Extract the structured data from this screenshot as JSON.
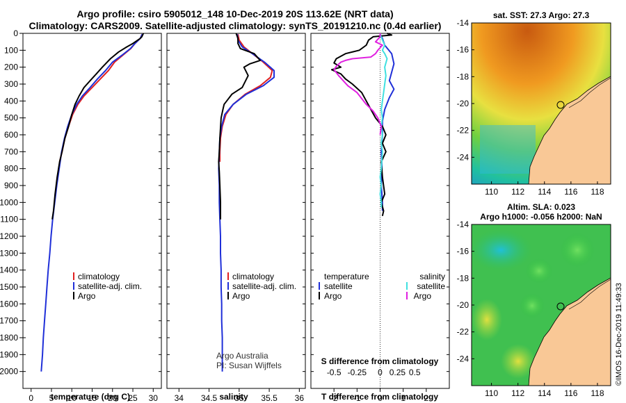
{
  "header": {
    "title_line1": "Argo profile: csiro 5905012_148 10-Dec-2019 20S 113.62E (NRT data)",
    "title_line2": "Climatology: CARS2009. Satellite-adjusted climatology: synTS_20191210.nc (0.4d earlier)"
  },
  "colors": {
    "climatology": "#e02020",
    "satellite": "#1f2fd8",
    "argo": "#000000",
    "sal_satellite": "#40e0e0",
    "sal_argo": "#e020e0",
    "land": "#f9c896"
  },
  "chart_data": [
    {
      "type": "line",
      "name": "temperature-profile",
      "xlabel": "temperature (deg C)",
      "ylabel": "",
      "xlim": [
        -2,
        32
      ],
      "ylim": [
        2100,
        0
      ],
      "xticks": [
        0,
        5,
        10,
        15,
        20,
        25,
        30
      ],
      "yticks": [
        0,
        100,
        200,
        300,
        400,
        500,
        600,
        700,
        800,
        900,
        1000,
        1100,
        1200,
        1300,
        1400,
        1500,
        1600,
        1700,
        1800,
        1900,
        2000
      ],
      "legend": [
        "climatology",
        "satellite-adj. clim.",
        "Argo"
      ],
      "series": [
        {
          "name": "climatology",
          "points": [
            [
              27.3,
              5
            ],
            [
              26.8,
              30
            ],
            [
              25.5,
              60
            ],
            [
              24.5,
              90
            ],
            [
              22.5,
              130
            ],
            [
              20.5,
              170
            ],
            [
              19,
              220
            ],
            [
              17,
              270
            ],
            [
              15,
              320
            ],
            [
              13,
              370
            ],
            [
              11.5,
              420
            ],
            [
              10.2,
              480
            ],
            [
              9.2,
              550
            ],
            [
              8.3,
              620
            ],
            [
              7.6,
              700
            ],
            [
              7,
              760
            ]
          ]
        },
        {
          "name": "satellite-adj. clim.",
          "points": [
            [
              27.3,
              5
            ],
            [
              26.8,
              30
            ],
            [
              25.5,
              60
            ],
            [
              24.4,
              90
            ],
            [
              22.3,
              130
            ],
            [
              20,
              170
            ],
            [
              18.3,
              220
            ],
            [
              16.3,
              270
            ],
            [
              14.5,
              320
            ],
            [
              12.6,
              370
            ],
            [
              11.2,
              420
            ],
            [
              10,
              480
            ],
            [
              9,
              550
            ],
            [
              8.2,
              620
            ],
            [
              7.5,
              700
            ],
            [
              6.9,
              800
            ],
            [
              6.3,
              900
            ],
            [
              5.8,
              1000
            ],
            [
              5.3,
              1100
            ],
            [
              4.9,
              1200
            ],
            [
              4.6,
              1300
            ],
            [
              4.2,
              1400
            ],
            [
              3.9,
              1500
            ],
            [
              3.6,
              1600
            ],
            [
              3.3,
              1700
            ],
            [
              3.0,
              1800
            ],
            [
              2.8,
              1900
            ],
            [
              2.5,
              2000
            ]
          ]
        },
        {
          "name": "Argo",
          "points": [
            [
              27.6,
              0
            ],
            [
              27.2,
              20
            ],
            [
              26.8,
              30
            ],
            [
              25,
              60
            ],
            [
              23.5,
              80
            ],
            [
              21.5,
              110
            ],
            [
              19.5,
              150
            ],
            [
              17.5,
              200
            ],
            [
              16,
              240
            ],
            [
              14.5,
              280
            ],
            [
              13,
              320
            ],
            [
              11.8,
              370
            ],
            [
              10.8,
              420
            ],
            [
              10,
              480
            ],
            [
              9.2,
              550
            ],
            [
              8.3,
              620
            ],
            [
              7.6,
              700
            ],
            [
              7,
              760
            ],
            [
              6.4,
              850
            ],
            [
              5.9,
              950
            ],
            [
              5.5,
              1050
            ],
            [
              5.2,
              1100
            ]
          ]
        }
      ]
    },
    {
      "type": "line",
      "name": "salinity-profile",
      "xlabel": "salinity",
      "xlim": [
        33.8,
        36.1
      ],
      "ylim": [
        2100,
        0
      ],
      "xticks": [
        34,
        34.5,
        35,
        35.5,
        36
      ],
      "xticklabels": [
        "34",
        "34.5",
        "35",
        "35.5",
        "36"
      ],
      "legend": [
        "climatology",
        "satellite-adj. clim.",
        "Argo"
      ],
      "annotation": [
        "Argo Australia",
        "PI: Susan Wijffels"
      ],
      "series": [
        {
          "name": "climatology",
          "points": [
            [
              34.98,
              5
            ],
            [
              35.0,
              40
            ],
            [
              35.08,
              80
            ],
            [
              35.22,
              120
            ],
            [
              35.4,
              170
            ],
            [
              35.55,
              220
            ],
            [
              35.52,
              260
            ],
            [
              35.35,
              310
            ],
            [
              35.1,
              360
            ],
            [
              34.9,
              420
            ],
            [
              34.78,
              480
            ],
            [
              34.72,
              550
            ],
            [
              34.69,
              620
            ],
            [
              34.68,
              700
            ],
            [
              34.68,
              760
            ]
          ]
        },
        {
          "name": "satellite-adj. clim.",
          "points": [
            [
              34.97,
              5
            ],
            [
              34.98,
              40
            ],
            [
              35.05,
              80
            ],
            [
              35.22,
              120
            ],
            [
              35.42,
              170
            ],
            [
              35.58,
              220
            ],
            [
              35.58,
              260
            ],
            [
              35.4,
              310
            ],
            [
              35.12,
              360
            ],
            [
              34.9,
              420
            ],
            [
              34.76,
              480
            ],
            [
              34.71,
              550
            ],
            [
              34.68,
              620
            ],
            [
              34.67,
              700
            ],
            [
              34.66,
              800
            ],
            [
              34.67,
              900
            ],
            [
              34.67,
              1000
            ],
            [
              34.68,
              1100
            ],
            [
              34.69,
              1200
            ],
            [
              34.69,
              1300
            ],
            [
              34.7,
              1400
            ],
            [
              34.7,
              1500
            ],
            [
              34.71,
              1600
            ],
            [
              34.71,
              1700
            ],
            [
              34.72,
              1800
            ],
            [
              34.72,
              1900
            ],
            [
              34.72,
              2000
            ]
          ]
        },
        {
          "name": "Argo",
          "points": [
            [
              34.95,
              0
            ],
            [
              34.98,
              30
            ],
            [
              34.98,
              60
            ],
            [
              35.02,
              90
            ],
            [
              35.25,
              120
            ],
            [
              35.35,
              160
            ],
            [
              35.18,
              180
            ],
            [
              35.08,
              200
            ],
            [
              35.15,
              250
            ],
            [
              35.05,
              320
            ],
            [
              34.88,
              360
            ],
            [
              34.75,
              420
            ],
            [
              34.73,
              450
            ],
            [
              34.7,
              500
            ],
            [
              34.69,
              560
            ],
            [
              34.68,
              620
            ],
            [
              34.67,
              700
            ],
            [
              34.66,
              760
            ],
            [
              34.67,
              820
            ],
            [
              34.68,
              900
            ],
            [
              34.69,
              1000
            ],
            [
              34.69,
              1100
            ]
          ]
        }
      ]
    },
    {
      "type": "line",
      "name": "difference-profile",
      "xlabel": "T difference from climatology",
      "xlabel_top": "S difference from climatology",
      "xlim": [
        -3,
        3
      ],
      "ylim": [
        2100,
        0
      ],
      "xticks": [
        -2,
        -1,
        0,
        1,
        2
      ],
      "xticklabels": [
        "-2",
        "-1",
        "0",
        "1",
        "2"
      ],
      "sticks": [
        -2,
        -1,
        0,
        0.75,
        1.5
      ],
      "sticklabels": [
        "-0.5",
        "-0.25",
        "0",
        "0.25",
        "0.5"
      ],
      "legend_left": [
        "temperature",
        "satellite",
        "Argo"
      ],
      "legend_right": [
        "salinity",
        "satellite",
        "Argo"
      ],
      "series": [
        {
          "name": "T satellite",
          "points": [
            [
              0,
              5
            ],
            [
              0.1,
              30
            ],
            [
              0.2,
              70
            ],
            [
              0.5,
              120
            ],
            [
              0.6,
              180
            ],
            [
              0.5,
              230
            ],
            [
              0.4,
              280
            ],
            [
              0.6,
              330
            ],
            [
              0.4,
              380
            ],
            [
              0.2,
              450
            ],
            [
              0.1,
              520
            ],
            [
              0.1,
              600
            ],
            [
              0.05,
              700
            ],
            [
              0.08,
              800
            ],
            [
              0.05,
              900
            ],
            [
              0.1,
              1000
            ],
            [
              0.1,
              1050
            ]
          ]
        },
        {
          "name": "T Argo",
          "points": [
            [
              0.3,
              0
            ],
            [
              0.4,
              5
            ],
            [
              0.5,
              10
            ],
            [
              -0.3,
              20
            ],
            [
              -0.5,
              40
            ],
            [
              -0.6,
              70
            ],
            [
              -0.9,
              100
            ],
            [
              -1.5,
              120
            ],
            [
              -1.9,
              150
            ],
            [
              -2.0,
              175
            ],
            [
              -1.7,
              200
            ],
            [
              -2.1,
              215
            ],
            [
              -1.7,
              240
            ],
            [
              -1.5,
              270
            ],
            [
              -1.2,
              300
            ],
            [
              -0.8,
              350
            ],
            [
              -0.6,
              400
            ],
            [
              -0.4,
              450
            ],
            [
              -0.2,
              500
            ],
            [
              0.1,
              550
            ],
            [
              0.25,
              600
            ],
            [
              0.1,
              650
            ],
            [
              0.25,
              700
            ],
            [
              0.05,
              760
            ],
            [
              0.1,
              850
            ],
            [
              0.2,
              950
            ],
            [
              0.05,
              1000
            ],
            [
              0.15,
              1050
            ],
            [
              0.1,
              1080
            ]
          ]
        },
        {
          "name": "S satellite",
          "points": [
            [
              0,
              5
            ],
            [
              0.1,
              40
            ],
            [
              0.2,
              70
            ],
            [
              0.1,
              100
            ],
            [
              0.2,
              120
            ],
            [
              0.3,
              150
            ],
            [
              0.2,
              200
            ],
            [
              0.25,
              250
            ],
            [
              0.2,
              300
            ],
            [
              0.15,
              350
            ],
            [
              0.1,
              400
            ],
            [
              0.05,
              450
            ],
            [
              0.1,
              500
            ],
            [
              0.05,
              550
            ],
            [
              0.1,
              600
            ],
            [
              0.05,
              650
            ],
            [
              0.1,
              700
            ],
            [
              0.05,
              800
            ],
            [
              0.0,
              850
            ],
            [
              0.05,
              900
            ],
            [
              0.0,
              950
            ],
            [
              0.05,
              1000
            ],
            [
              0.05,
              1030
            ]
          ]
        },
        {
          "name": "S Argo",
          "points": [
            [
              0,
              0
            ],
            [
              0,
              20
            ],
            [
              -0.2,
              50
            ],
            [
              0.1,
              70
            ],
            [
              -0.1,
              100
            ],
            [
              -0.2,
              120
            ],
            [
              -0.4,
              140
            ],
            [
              -1.2,
              150
            ],
            [
              -1.5,
              160
            ],
            [
              -1.7,
              170
            ],
            [
              -1.9,
              195
            ],
            [
              -2.0,
              215
            ],
            [
              -1.8,
              250
            ],
            [
              -1.6,
              280
            ],
            [
              -1.4,
              310
            ],
            [
              -1.0,
              350
            ],
            [
              -0.6,
              420
            ],
            [
              -0.3,
              460
            ],
            [
              -0.1,
              500
            ],
            [
              0.05,
              550
            ],
            [
              0.0,
              600
            ]
          ]
        }
      ]
    }
  ],
  "maps": [
    {
      "name": "sst-map",
      "title": "sat. SST: 27.3 Argo: 27.3",
      "lat_ticks": [
        "-14",
        "-16",
        "-18",
        "-20",
        "-22",
        "-24"
      ],
      "lon_ticks": [
        "110",
        "112",
        "114",
        "116",
        "118"
      ],
      "marker": [
        113.62,
        -20
      ]
    },
    {
      "name": "sla-map",
      "title": "Altim. SLA: 0.023",
      "subtitle": "Argo h1000: -0.056 h2000: NaN",
      "lat_ticks": [
        "-14",
        "-16",
        "-18",
        "-20",
        "-22",
        "-24"
      ],
      "lon_ticks": [
        "110",
        "112",
        "114",
        "116",
        "118"
      ],
      "marker": [
        113.62,
        -20
      ]
    }
  ],
  "credit": "©IMOS 16-Dec-2019 11:49:33"
}
